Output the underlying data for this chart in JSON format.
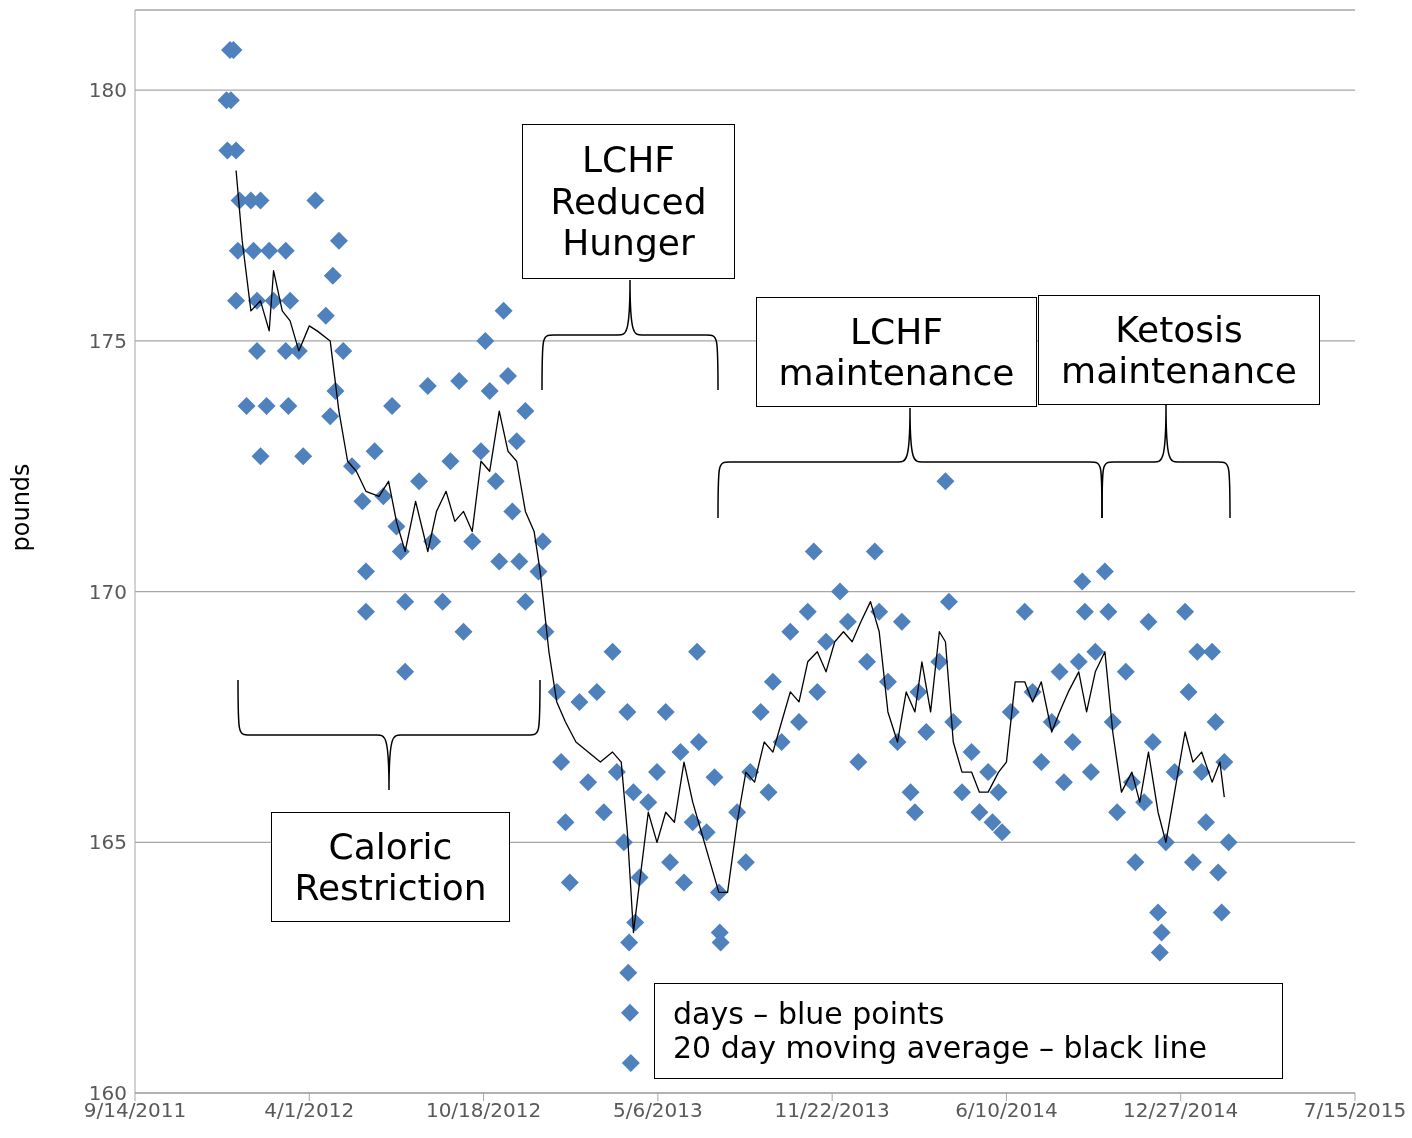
{
  "chart_data": {
    "type": "scatter",
    "ylabel": "pounds",
    "xlim": [
      "2011-09-14",
      "2015-07-15"
    ],
    "xticks": [
      {
        "value": "2011-09-14",
        "label": "9/14/2011"
      },
      {
        "value": "2012-04-01",
        "label": "4/1/2012"
      },
      {
        "value": "2012-10-18",
        "label": "10/18/2012"
      },
      {
        "value": "2013-05-06",
        "label": "5/6/2013"
      },
      {
        "value": "2013-11-22",
        "label": "11/22/2013"
      },
      {
        "value": "2014-06-10",
        "label": "6/10/2014"
      },
      {
        "value": "2014-12-27",
        "label": "12/27/2014"
      },
      {
        "value": "2015-07-15",
        "label": "7/15/2015"
      }
    ],
    "ylim": [
      160,
      181.6
    ],
    "yticks": [
      160,
      165,
      170,
      175,
      180
    ],
    "grid": "y",
    "annotations": [
      "LCHF\nReduced\nHunger",
      "LCHF\nmaintenance",
      "Ketosis\nmaintenance",
      "Caloric\nRestriction",
      "days – blue points\n20 day moving average – black line"
    ],
    "series": [
      {
        "type": "scatter",
        "color": "#4f81bd",
        "marker": "diamond",
        "x": [
          "2011-12-28",
          "2011-12-29",
          "2012-01-01",
          "2012-01-02",
          "2012-01-05",
          "2012-01-08",
          "2012-01-08",
          "2012-01-10",
          "2012-01-12",
          "2012-01-20",
          "2012-01-25",
          "2012-01-28",
          "2012-02-01",
          "2012-02-01",
          "2012-02-05",
          "2012-02-05",
          "2012-02-12",
          "2012-02-15",
          "2012-02-20",
          "2012-03-05",
          "2012-03-05",
          "2012-03-08",
          "2012-03-10",
          "2012-03-20",
          "2012-03-25",
          "2012-04-08",
          "2012-04-20",
          "2012-04-25",
          "2012-04-28",
          "2012-05-01",
          "2012-05-05",
          "2012-05-10",
          "2012-05-20",
          "2012-06-01",
          "2012-06-05",
          "2012-06-05",
          "2012-06-15",
          "2012-06-25",
          "2012-07-05",
          "2012-07-10",
          "2012-07-15",
          "2012-07-20",
          "2012-07-20",
          "2012-08-05",
          "2012-08-15",
          "2012-08-20",
          "2012-09-01",
          "2012-09-10",
          "2012-09-20",
          "2012-09-25",
          "2012-10-05",
          "2012-10-15",
          "2012-10-20",
          "2012-10-25",
          "2012-11-01",
          "2012-11-05",
          "2012-11-10",
          "2012-11-15",
          "2012-11-20",
          "2012-11-25",
          "2012-11-28",
          "2012-12-05",
          "2012-12-05",
          "2012-12-20",
          "2012-12-25",
          "2012-12-28",
          "2013-01-10",
          "2013-01-15",
          "2013-01-20",
          "2013-01-25",
          "2013-02-05",
          "2013-02-15",
          "2013-02-25",
          "2013-03-05",
          "2013-03-15",
          "2013-03-20",
          "2013-03-28",
          "2013-04-01",
          "2013-04-03",
          "2013-04-02",
          "2013-04-04",
          "2013-04-05",
          "2013-04-08",
          "2013-04-10",
          "2013-04-15",
          "2013-04-25",
          "2013-05-05",
          "2013-05-15",
          "2013-05-20",
          "2013-06-01",
          "2013-06-05",
          "2013-06-15",
          "2013-06-20",
          "2013-06-22",
          "2013-07-01",
          "2013-07-10",
          "2013-07-15",
          "2013-07-16",
          "2013-07-17",
          "2013-08-05",
          "2013-08-15",
          "2013-08-20",
          "2013-09-01",
          "2013-09-10",
          "2013-09-15",
          "2013-09-25",
          "2013-10-05",
          "2013-10-15",
          "2013-10-25",
          "2013-11-01",
          "2013-11-05",
          "2013-11-15",
          "2013-12-01",
          "2013-12-10",
          "2013-12-22",
          "2014-01-01",
          "2014-01-10",
          "2014-01-15",
          "2014-01-25",
          "2014-02-05",
          "2014-02-10",
          "2014-02-20",
          "2014-02-25",
          "2014-03-01",
          "2014-03-10",
          "2014-03-25",
          "2014-04-01",
          "2014-04-05",
          "2014-04-10",
          "2014-04-20",
          "2014-05-01",
          "2014-05-10",
          "2014-05-20",
          "2014-05-25",
          "2014-06-01",
          "2014-06-05",
          "2014-06-15",
          "2014-07-01",
          "2014-07-10",
          "2014-07-20",
          "2014-08-01",
          "2014-08-10",
          "2014-08-15",
          "2014-08-25",
          "2014-09-01",
          "2014-09-05",
          "2014-09-08",
          "2014-09-15",
          "2014-09-20",
          "2014-10-01",
          "2014-10-05",
          "2014-10-10",
          "2014-10-15",
          "2014-10-25",
          "2014-11-01",
          "2014-11-05",
          "2014-11-15",
          "2014-11-20",
          "2014-11-25",
          "2014-12-01",
          "2014-12-03",
          "2014-12-05",
          "2014-12-10",
          "2014-12-20",
          "2015-01-01",
          "2015-01-05",
          "2015-01-10",
          "2015-01-15",
          "2015-01-20",
          "2015-01-25",
          "2015-02-01",
          "2015-02-05",
          "2015-02-08",
          "2015-02-12",
          "2015-02-15",
          "2015-02-20"
        ],
        "values": [
          179.8,
          178.8,
          180.8,
          179.8,
          180.8,
          178.8,
          175.8,
          176.8,
          177.8,
          173.7,
          177.8,
          176.8,
          175.8,
          174.8,
          177.8,
          172.7,
          173.7,
          176.8,
          175.8,
          176.8,
          174.8,
          173.7,
          175.8,
          174.8,
          172.7,
          177.8,
          175.5,
          173.5,
          176.3,
          174.0,
          177.0,
          174.8,
          172.5,
          171.8,
          170.4,
          169.6,
          172.8,
          171.9,
          173.7,
          171.3,
          170.8,
          169.8,
          168.4,
          172.2,
          174.1,
          171.0,
          169.8,
          172.6,
          174.2,
          169.2,
          171.0,
          172.8,
          175.0,
          174.0,
          172.2,
          170.6,
          175.6,
          174.3,
          171.6,
          173.0,
          170.6,
          173.6,
          169.8,
          170.4,
          171.0,
          169.2,
          168.0,
          166.6,
          165.4,
          164.2,
          167.8,
          166.2,
          168.0,
          165.6,
          168.8,
          166.4,
          165.0,
          167.6,
          163.0,
          162.4,
          161.6,
          160.6,
          166.0,
          163.4,
          164.3,
          165.8,
          166.4,
          167.6,
          164.6,
          166.8,
          164.2,
          165.4,
          168.8,
          167.0,
          165.2,
          166.3,
          164.0,
          163.2,
          163.0,
          165.6,
          164.6,
          166.4,
          167.6,
          166.0,
          168.2,
          167.0,
          169.2,
          167.4,
          169.6,
          170.8,
          168.0,
          169.0,
          170.0,
          169.4,
          166.6,
          168.6,
          170.8,
          169.6,
          168.2,
          167.0,
          169.4,
          166.0,
          165.6,
          168.0,
          167.2,
          168.6,
          172.2,
          169.8,
          167.4,
          166.0,
          166.8,
          165.6,
          166.4,
          165.4,
          166.0,
          165.2,
          167.6,
          169.6,
          168.0,
          166.6,
          167.4,
          168.4,
          166.2,
          167.0,
          168.6,
          170.2,
          169.6,
          166.4,
          168.8,
          170.4,
          169.6,
          167.4,
          165.6,
          168.4,
          166.2,
          164.6,
          165.8,
          169.4,
          167.0,
          163.6,
          162.8,
          163.2,
          165.0,
          166.4,
          169.6,
          168.0,
          164.6,
          168.8,
          166.4,
          165.4,
          168.8,
          167.4,
          164.4,
          163.6,
          166.6,
          165.0
        ]
      },
      {
        "type": "line",
        "color": "#000000",
        "marker": "none",
        "x": [
          "2012-01-08",
          "2012-01-15",
          "2012-01-25",
          "2012-02-05",
          "2012-02-15",
          "2012-02-20",
          "2012-03-01",
          "2012-03-10",
          "2012-03-20",
          "2012-04-01",
          "2012-04-10",
          "2012-04-25",
          "2012-05-05",
          "2012-05-15",
          "2012-05-25",
          "2012-06-05",
          "2012-06-20",
          "2012-07-01",
          "2012-07-10",
          "2012-07-20",
          "2012-08-01",
          "2012-08-15",
          "2012-08-25",
          "2012-09-05",
          "2012-09-15",
          "2012-09-25",
          "2012-10-05",
          "2012-10-15",
          "2012-10-25",
          "2012-11-05",
          "2012-11-15",
          "2012-11-25",
          "2012-12-05",
          "2012-12-15",
          "2012-12-22",
          "2013-01-01",
          "2013-01-10",
          "2013-01-20",
          "2013-02-01",
          "2013-02-15",
          "2013-03-01",
          "2013-03-15",
          "2013-03-25",
          "2013-04-01",
          "2013-04-08",
          "2013-04-15",
          "2013-04-25",
          "2013-05-05",
          "2013-05-15",
          "2013-05-25",
          "2013-06-05",
          "2013-06-15",
          "2013-06-25",
          "2013-07-05",
          "2013-07-15",
          "2013-07-25",
          "2013-08-05",
          "2013-08-15",
          "2013-08-25",
          "2013-09-05",
          "2013-09-15",
          "2013-09-25",
          "2013-10-05",
          "2013-10-15",
          "2013-10-25",
          "2013-11-05",
          "2013-11-15",
          "2013-11-25",
          "2013-12-05",
          "2013-12-15",
          "2013-12-25",
          "2014-01-05",
          "2014-01-15",
          "2014-01-25",
          "2014-02-05",
          "2014-02-15",
          "2014-02-25",
          "2014-03-05",
          "2014-03-15",
          "2014-03-25",
          "2014-04-01",
          "2014-04-10",
          "2014-04-20",
          "2014-05-01",
          "2014-05-10",
          "2014-05-20",
          "2014-06-01",
          "2014-06-10",
          "2014-06-20",
          "2014-07-01",
          "2014-07-10",
          "2014-07-20",
          "2014-08-01",
          "2014-08-10",
          "2014-08-20",
          "2014-09-01",
          "2014-09-10",
          "2014-09-20",
          "2014-10-01",
          "2014-10-10",
          "2014-10-20",
          "2014-11-01",
          "2014-11-10",
          "2014-11-20",
          "2014-12-01",
          "2014-12-10",
          "2014-12-20",
          "2015-01-01",
          "2015-01-10",
          "2015-01-20",
          "2015-02-01",
          "2015-02-10",
          "2015-02-15"
        ],
        "values": [
          178.4,
          177.0,
          175.6,
          175.8,
          175.2,
          176.4,
          175.6,
          175.4,
          174.8,
          175.3,
          175.2,
          175.0,
          173.6,
          172.6,
          172.4,
          172.0,
          171.9,
          172.2,
          171.4,
          170.8,
          171.8,
          170.8,
          171.6,
          172.0,
          171.4,
          171.6,
          171.2,
          172.6,
          172.4,
          173.6,
          172.8,
          172.6,
          171.6,
          171.2,
          170.4,
          168.8,
          167.8,
          167.4,
          167.0,
          166.8,
          166.6,
          166.8,
          166.6,
          165.2,
          163.2,
          164.2,
          165.6,
          165.0,
          165.6,
          165.4,
          166.6,
          165.8,
          165.2,
          164.6,
          164.0,
          164.0,
          165.4,
          166.4,
          166.2,
          167.0,
          166.8,
          167.4,
          168.0,
          167.8,
          168.6,
          168.8,
          168.4,
          169.0,
          169.2,
          169.0,
          169.4,
          169.8,
          169.2,
          167.6,
          167.0,
          168.0,
          167.6,
          168.6,
          167.6,
          169.2,
          169.0,
          167.0,
          166.4,
          166.4,
          166.0,
          166.0,
          166.4,
          166.6,
          168.2,
          168.2,
          167.8,
          168.2,
          167.2,
          167.6,
          168.0,
          168.4,
          167.6,
          168.4,
          168.8,
          167.2,
          166.0,
          166.4,
          165.8,
          166.8,
          165.6,
          165.0,
          166.0,
          167.2,
          166.6,
          166.8,
          166.2,
          166.6,
          165.9
        ]
      }
    ]
  }
}
